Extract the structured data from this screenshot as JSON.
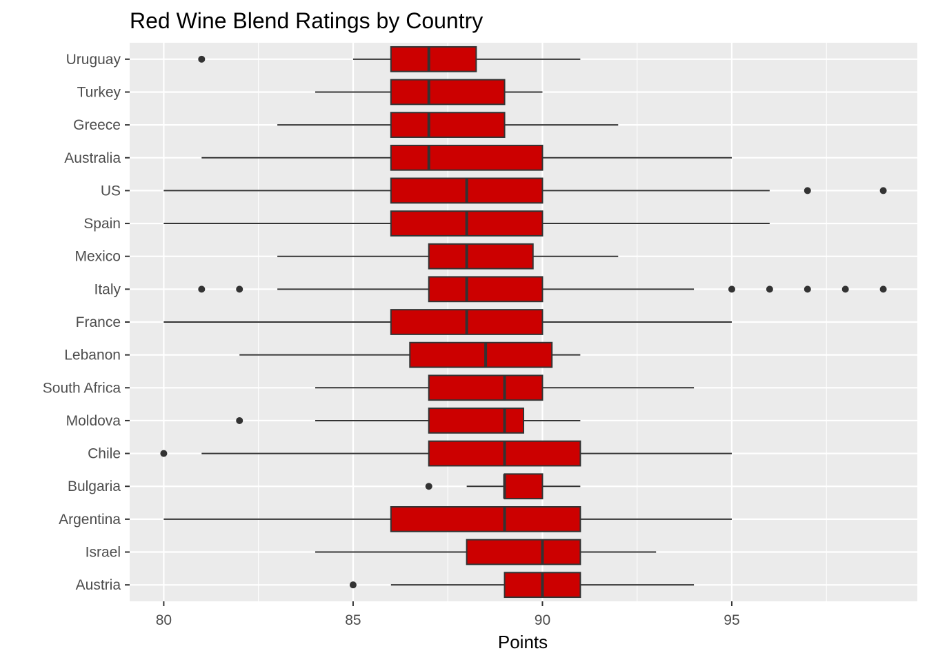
{
  "chart_data": {
    "type": "boxplot",
    "title": "Red Wine Blend Ratings by Country",
    "xlabel": "Points",
    "ylabel": "",
    "xlim": [
      79.1,
      99.9
    ],
    "x_ticks": [
      80,
      85,
      90,
      95
    ],
    "grid": true,
    "legend": "none",
    "colors": {
      "box_fill": "#CC0000",
      "box_stroke": "#333333",
      "panel_background": "#EBEBEB",
      "grid_line": "#FFFFFF",
      "tick_label": "#4D4D4D"
    },
    "categories": [
      "Uruguay",
      "Turkey",
      "Greece",
      "Australia",
      "US",
      "Spain",
      "Mexico",
      "Italy",
      "France",
      "Lebanon",
      "South Africa",
      "Moldova",
      "Chile",
      "Bulgaria",
      "Argentina",
      "Israel",
      "Austria"
    ],
    "boxes": [
      {
        "category": "Uruguay",
        "whisker_low": 85,
        "q1": 86,
        "median": 87,
        "q3": 88.25,
        "whisker_high": 91,
        "outliers": [
          81
        ]
      },
      {
        "category": "Turkey",
        "whisker_low": 84,
        "q1": 86,
        "median": 87,
        "q3": 89,
        "whisker_high": 90,
        "outliers": []
      },
      {
        "category": "Greece",
        "whisker_low": 83,
        "q1": 86,
        "median": 87,
        "q3": 89,
        "whisker_high": 92,
        "outliers": []
      },
      {
        "category": "Australia",
        "whisker_low": 81,
        "q1": 86,
        "median": 87,
        "q3": 90,
        "whisker_high": 95,
        "outliers": []
      },
      {
        "category": "US",
        "whisker_low": 80,
        "q1": 86,
        "median": 88,
        "q3": 90,
        "whisker_high": 96,
        "outliers": [
          97,
          99
        ]
      },
      {
        "category": "Spain",
        "whisker_low": 80,
        "q1": 86,
        "median": 88,
        "q3": 90,
        "whisker_high": 96,
        "outliers": []
      },
      {
        "category": "Mexico",
        "whisker_low": 83,
        "q1": 87,
        "median": 88,
        "q3": 89.75,
        "whisker_high": 92,
        "outliers": []
      },
      {
        "category": "Italy",
        "whisker_low": 83,
        "q1": 87,
        "median": 88,
        "q3": 90,
        "whisker_high": 94,
        "outliers": [
          81,
          82,
          95,
          96,
          97,
          98,
          99
        ]
      },
      {
        "category": "France",
        "whisker_low": 80,
        "q1": 86,
        "median": 88,
        "q3": 90,
        "whisker_high": 95,
        "outliers": []
      },
      {
        "category": "Lebanon",
        "whisker_low": 82,
        "q1": 86.5,
        "median": 88.5,
        "q3": 90.25,
        "whisker_high": 91,
        "outliers": []
      },
      {
        "category": "South Africa",
        "whisker_low": 84,
        "q1": 87,
        "median": 89,
        "q3": 90,
        "whisker_high": 94,
        "outliers": []
      },
      {
        "category": "Moldova",
        "whisker_low": 84,
        "q1": 87,
        "median": 89,
        "q3": 89.5,
        "whisker_high": 91,
        "outliers": [
          82
        ]
      },
      {
        "category": "Chile",
        "whisker_low": 81,
        "q1": 87,
        "median": 89,
        "q3": 91,
        "whisker_high": 95,
        "outliers": [
          80
        ]
      },
      {
        "category": "Bulgaria",
        "whisker_low": 88,
        "q1": 89,
        "median": 89,
        "q3": 90,
        "whisker_high": 91,
        "outliers": [
          87
        ]
      },
      {
        "category": "Argentina",
        "whisker_low": 80,
        "q1": 86,
        "median": 89,
        "q3": 91,
        "whisker_high": 95,
        "outliers": []
      },
      {
        "category": "Israel",
        "whisker_low": 84,
        "q1": 88,
        "median": 90,
        "q3": 91,
        "whisker_high": 93,
        "outliers": []
      },
      {
        "category": "Austria",
        "whisker_low": 86,
        "q1": 89,
        "median": 90,
        "q3": 91,
        "whisker_high": 94,
        "outliers": [
          85
        ]
      }
    ]
  }
}
